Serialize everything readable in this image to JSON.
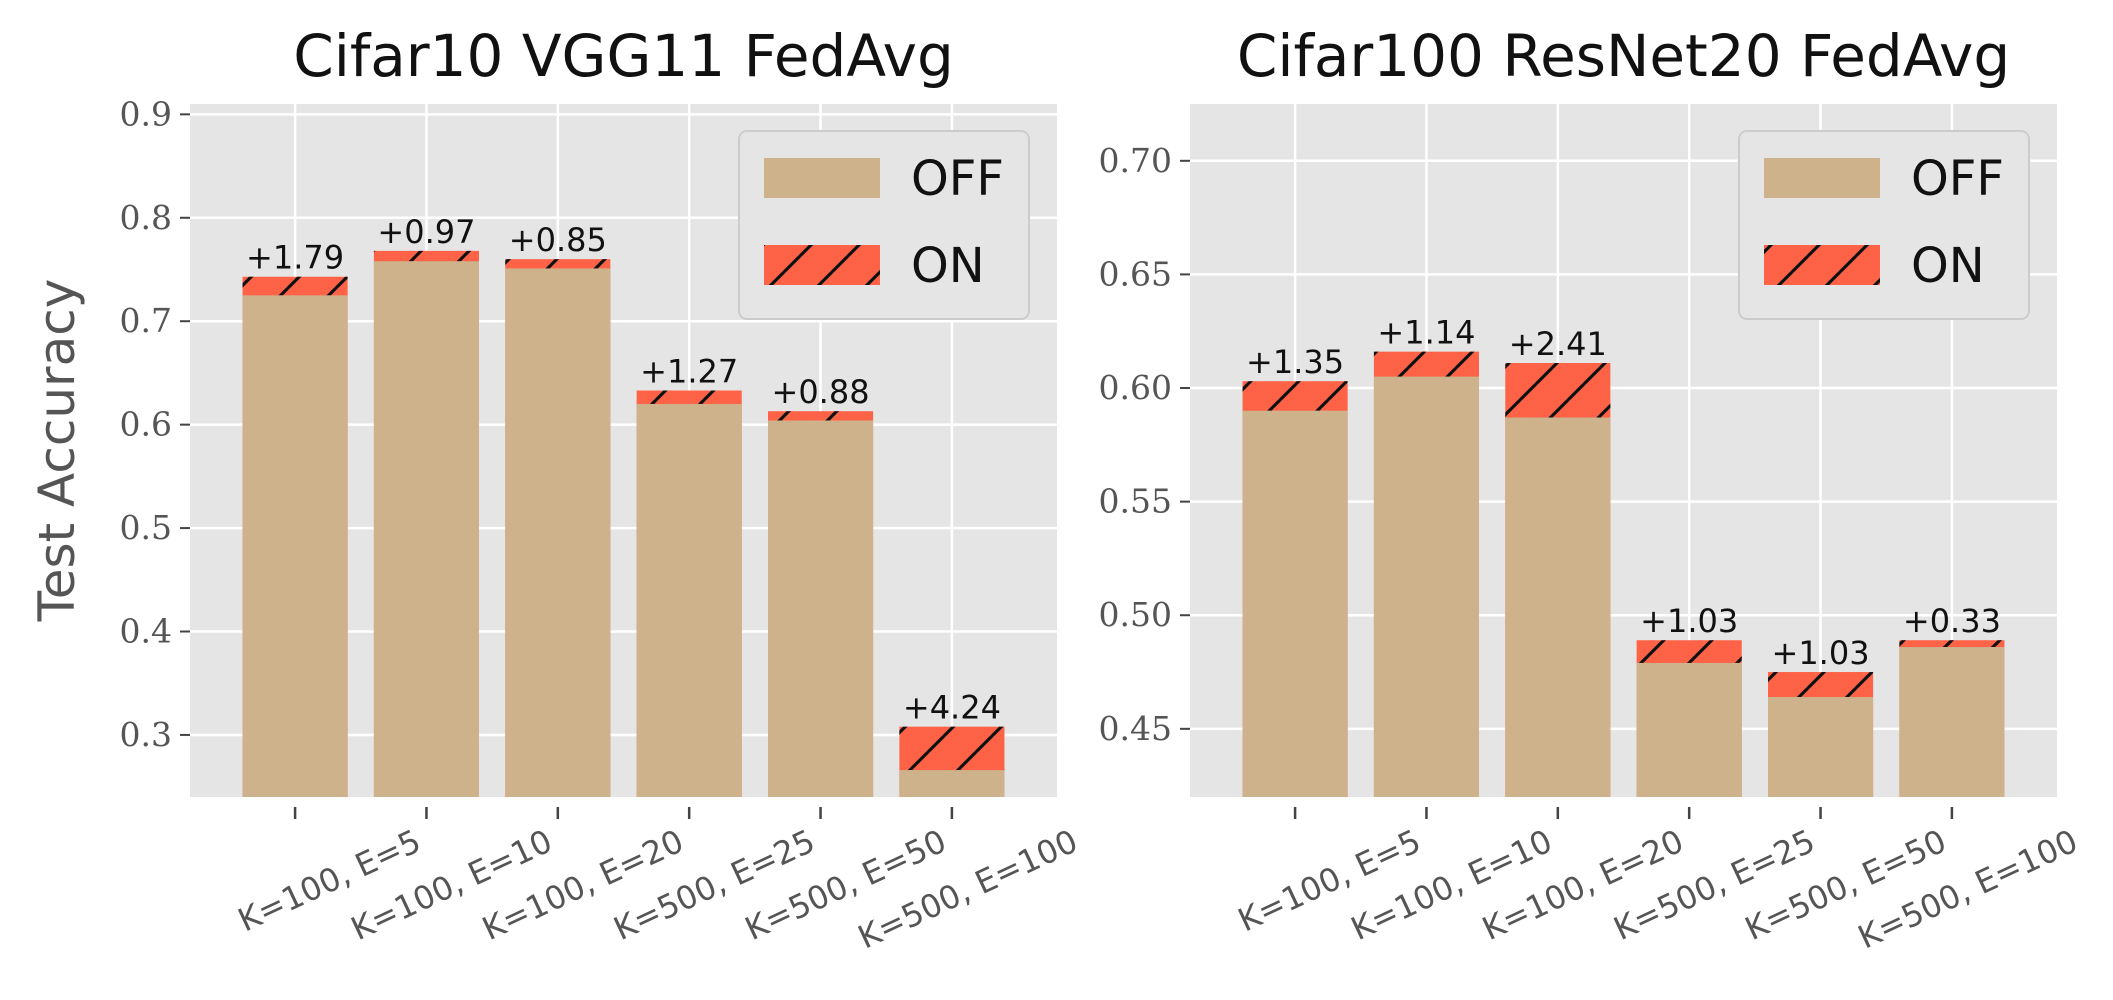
{
  "colors": {
    "off": "#CDB28C",
    "on": "#FF6347",
    "hatch": "#111111",
    "panel_bg": "#E5E5E5",
    "grid": "#FFFFFF"
  },
  "ylabel": "Test Accuracy",
  "chart_data": [
    {
      "type": "bar",
      "title": "Cifar10 VGG11 FedAvg",
      "categories": [
        "K=100, E=5",
        "K=100, E=10",
        "K=100, E=20",
        "K=500, E=25",
        "K=500, E=50",
        "K=500, E=100"
      ],
      "series": [
        {
          "name": "OFF",
          "values": [
            0.725,
            0.758,
            0.751,
            0.62,
            0.604,
            0.266
          ]
        },
        {
          "name": "ON",
          "values": [
            0.743,
            0.768,
            0.76,
            0.633,
            0.613,
            0.308
          ]
        }
      ],
      "bar_labels": [
        "+1.79",
        "+0.97",
        "+0.85",
        "+1.27",
        "+0.88",
        "+4.24"
      ],
      "ylim": [
        0.24,
        0.91
      ],
      "yticks": [
        0.3,
        0.4,
        0.5,
        0.6,
        0.7,
        0.8,
        0.9
      ],
      "ytick_labels": [
        "0.3",
        "0.4",
        "0.5",
        "0.6",
        "0.7",
        "0.8",
        "0.9"
      ],
      "ylabel": "Test Accuracy",
      "xlabel": "",
      "grid": true,
      "legend": {
        "position": "top-right",
        "entries": [
          "OFF",
          "ON"
        ]
      }
    },
    {
      "type": "bar",
      "title": "Cifar100 ResNet20 FedAvg",
      "categories": [
        "K=100, E=5",
        "K=100, E=10",
        "K=100, E=20",
        "K=500, E=25",
        "K=500, E=50",
        "K=500, E=100"
      ],
      "series": [
        {
          "name": "OFF",
          "values": [
            0.59,
            0.605,
            0.587,
            0.479,
            0.464,
            0.486
          ]
        },
        {
          "name": "ON",
          "values": [
            0.603,
            0.616,
            0.611,
            0.489,
            0.475,
            0.489
          ]
        }
      ],
      "bar_labels": [
        "+1.35",
        "+1.14",
        "+2.41",
        "+1.03",
        "+1.03",
        "+0.33"
      ],
      "ylim": [
        0.42,
        0.725
      ],
      "yticks": [
        0.45,
        0.5,
        0.55,
        0.6,
        0.65,
        0.7
      ],
      "ytick_labels": [
        "0.45",
        "0.50",
        "0.55",
        "0.60",
        "0.65",
        "0.70"
      ],
      "xlabel": "",
      "grid": true,
      "legend": {
        "position": "top-right",
        "entries": [
          "OFF",
          "ON"
        ]
      }
    }
  ]
}
